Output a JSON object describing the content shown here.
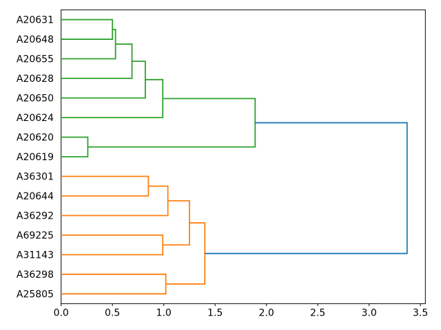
{
  "chart_data": {
    "type": "dendrogram",
    "orientation": "right",
    "title": "",
    "xlabel": "",
    "ylabel": "",
    "leaves_top_to_bottom": [
      "A20631",
      "A20648",
      "A20655",
      "A20628",
      "A20650",
      "A20624",
      "A20620",
      "A20619",
      "A36301",
      "A20644",
      "A36292",
      "A69225",
      "A31143",
      "A36298",
      "A25805"
    ],
    "xlim": [
      0,
      3.548
    ],
    "x_ticks": [
      0.0,
      0.5,
      1.0,
      1.5,
      2.0,
      2.5,
      3.0,
      3.5
    ],
    "x_tick_labels": [
      "0.0",
      "0.5",
      "1.0",
      "1.5",
      "2.0",
      "2.5",
      "3.0",
      "3.5"
    ],
    "grid": false,
    "legend": null,
    "colors": {
      "green_cluster": "#2ca02c",
      "orange_cluster": "#ff7f0e",
      "root_link": "#1f77b4",
      "spine": "#000000",
      "text": "#000000"
    },
    "tree": {
      "d": 3.37,
      "color": "root_link",
      "children": [
        {
          "d": 1.89,
          "color": "green_cluster",
          "children": [
            {
              "d": 0.99,
              "color": "green_cluster",
              "children": [
                {
                  "d": 0.82,
                  "color": "green_cluster",
                  "children": [
                    {
                      "d": 0.69,
                      "color": "green_cluster",
                      "children": [
                        {
                          "d": 0.53,
                          "color": "green_cluster",
                          "children": [
                            {
                              "d": 0.5,
                              "color": "green_cluster",
                              "children": [
                                {
                                  "leaf": "A20631"
                                },
                                {
                                  "leaf": "A20648"
                                }
                              ]
                            },
                            {
                              "leaf": "A20655"
                            }
                          ]
                        },
                        {
                          "leaf": "A20628"
                        }
                      ]
                    },
                    {
                      "leaf": "A20650"
                    }
                  ]
                },
                {
                  "leaf": "A20624"
                }
              ]
            },
            {
              "d": 0.26,
              "color": "green_cluster",
              "children": [
                {
                  "leaf": "A20620"
                },
                {
                  "leaf": "A20619"
                }
              ]
            }
          ]
        },
        {
          "d": 1.4,
          "color": "orange_cluster",
          "children": [
            {
              "d": 1.25,
              "color": "orange_cluster",
              "children": [
                {
                  "d": 1.04,
                  "color": "orange_cluster",
                  "children": [
                    {
                      "d": 0.85,
                      "color": "orange_cluster",
                      "children": [
                        {
                          "leaf": "A36301"
                        },
                        {
                          "leaf": "A20644"
                        }
                      ]
                    },
                    {
                      "leaf": "A36292"
                    }
                  ]
                },
                {
                  "d": 0.99,
                  "color": "orange_cluster",
                  "children": [
                    {
                      "leaf": "A69225"
                    },
                    {
                      "leaf": "A31143"
                    }
                  ]
                }
              ]
            },
            {
              "d": 1.02,
              "color": "orange_cluster",
              "children": [
                {
                  "leaf": "A36298"
                },
                {
                  "leaf": "A25805"
                }
              ]
            }
          ]
        }
      ]
    }
  }
}
